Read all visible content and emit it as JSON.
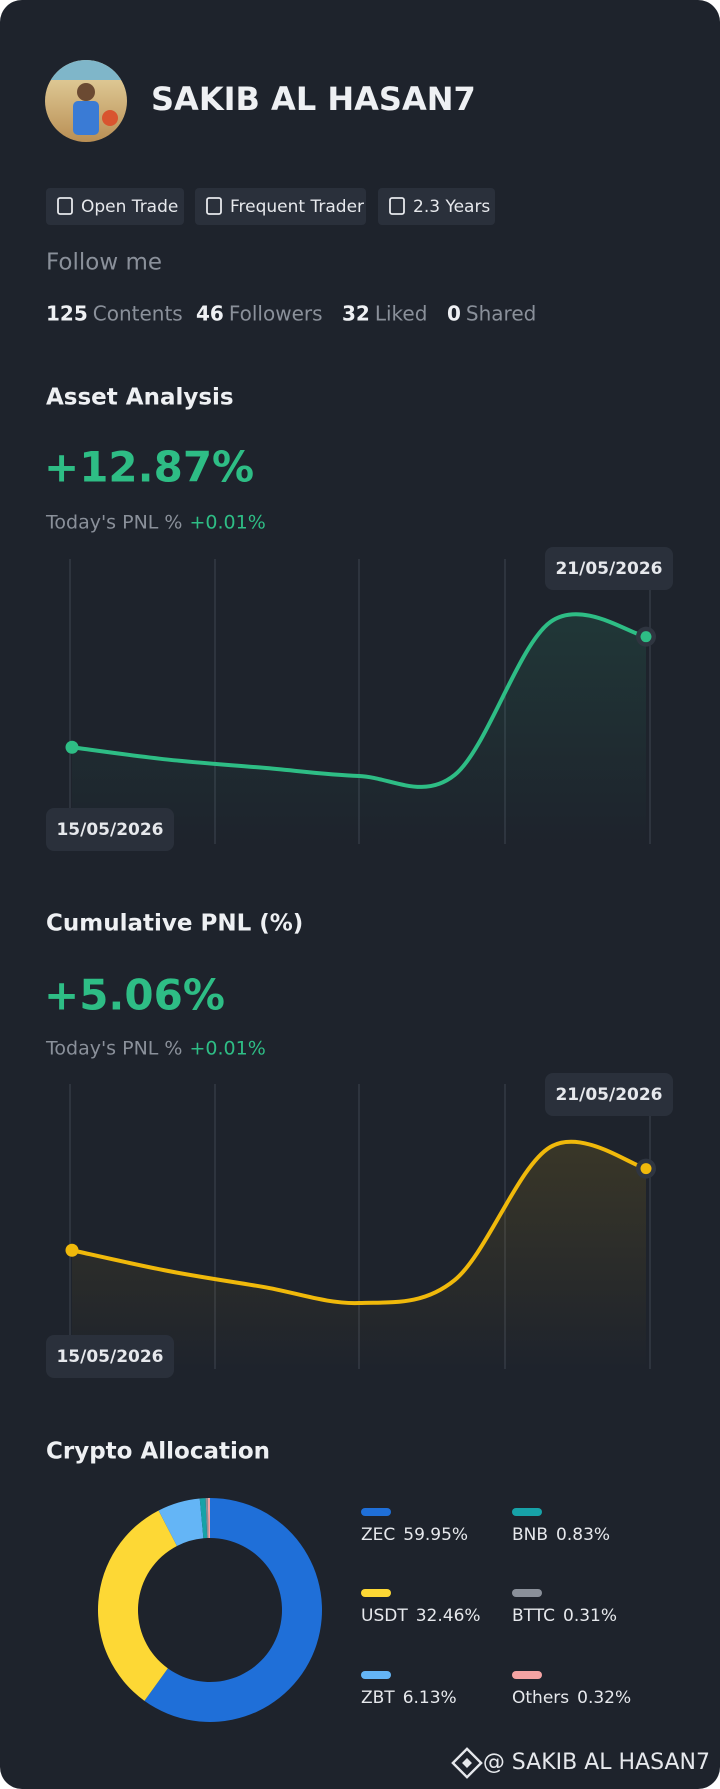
{
  "profile": {
    "name": "SAKIB AL HASAN7",
    "tags": [
      "Open Trade",
      "Frequent Trader",
      "2.3 Years"
    ],
    "follow_label": "Follow me",
    "stats": [
      {
        "value": 125,
        "label": "Contents"
      },
      {
        "value": 46,
        "label": "Followers"
      },
      {
        "value": 32,
        "label": "Liked"
      },
      {
        "value": 0,
        "label": "Shared"
      }
    ]
  },
  "chart_data": [
    {
      "type": "line",
      "title": "Asset Analysis",
      "headline": "+12.87%",
      "pnl_label": "Today's PNL %",
      "pnl_value": "+0.01%",
      "categories": [
        "15/05/2026",
        null,
        null,
        null,
        null,
        null,
        "21/05/2026"
      ],
      "series": [
        {
          "color": "#2ebd85",
          "values": [
            2.1,
            0.9,
            0.1,
            -0.7,
            -0.6,
            14.3,
            12.87
          ]
        }
      ]
    },
    {
      "type": "line",
      "title": "Cumulative PNL (%)",
      "headline": "+5.06%",
      "pnl_label": "Today's PNL %",
      "pnl_value": "+0.01%",
      "categories": [
        "15/05/2026",
        null,
        null,
        null,
        null,
        null,
        "21/05/2026"
      ],
      "series": [
        {
          "color": "#f0b90b",
          "values": [
            1.5,
            0.6,
            -0.1,
            -0.8,
            0.2,
            6.0,
            5.06
          ]
        }
      ]
    },
    {
      "type": "pie",
      "title": "Crypto Allocation",
      "categories": [
        "ZEC",
        "USDT",
        "ZBT",
        "BNB",
        "BTTC",
        "Others"
      ],
      "values": [
        59.95,
        32.46,
        6.13,
        0.83,
        0.31,
        0.32
      ],
      "value_labels": [
        "59.95%",
        "32.46%",
        "6.13%",
        "0.83%",
        "0.31%",
        "0.32%"
      ],
      "colors": [
        "#1f6fd8",
        "#fdd835",
        "#64b5f6",
        "#17a2a8",
        "#8a909a",
        "#f4a3a3"
      ]
    }
  ],
  "footer": "@ SAKIB AL HASAN7"
}
